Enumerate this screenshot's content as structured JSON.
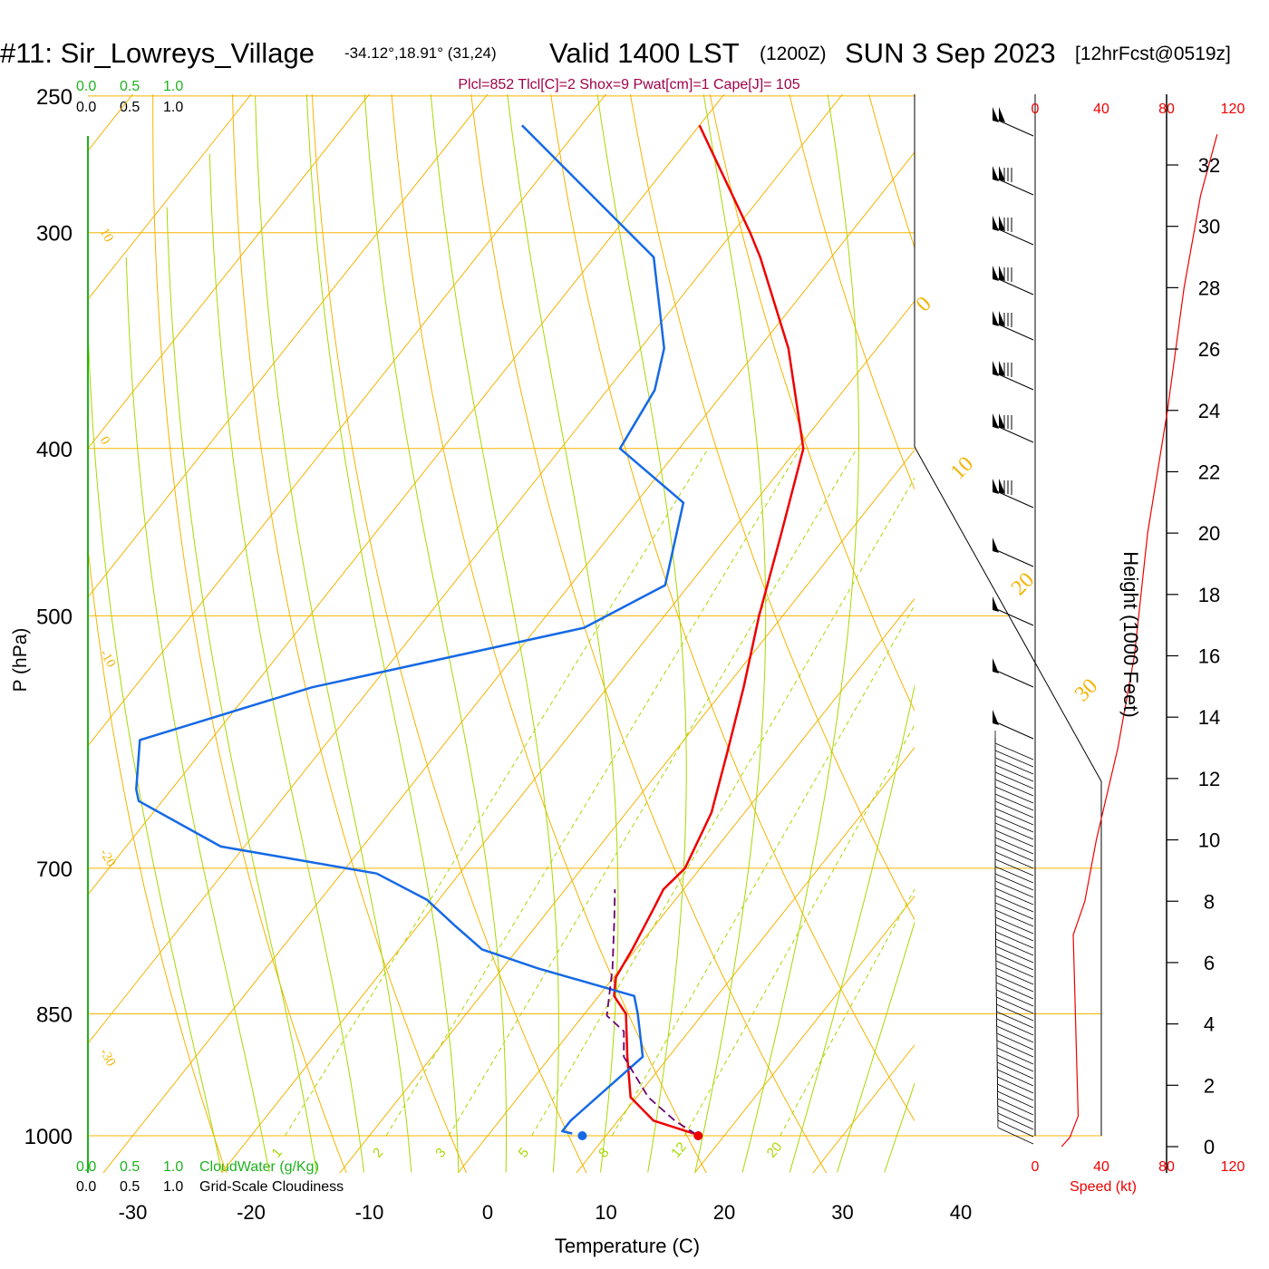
{
  "header": {
    "station": "#11: Sir_Lowreys_Village",
    "coords": "-34.12°,18.91° (31,24)",
    "valid": "Valid 1400 LST",
    "zulu": "(1200Z)",
    "date": "SUN 3 Sep 2023",
    "forecast": "[12hrFcst@0519z]"
  },
  "indices": "Plcl=852 Tlcl[C]=2 Shox=9 Pwat[cm]=1 Cape[J]= 105",
  "scales": {
    "cloudwater_ticks": [
      "0.0",
      "0.5",
      "1.0"
    ],
    "cloudiness_ticks": [
      "0.0",
      "0.5",
      "1.0"
    ],
    "cloudwater_label": "CloudWater (g/Kg)",
    "cloudiness_label": "Grid-Scale Cloudiness"
  },
  "wind_speed_axis": {
    "ticks": [
      "0",
      "40",
      "80",
      "120"
    ],
    "label": "Speed (kt)"
  },
  "colors": {
    "isotherm": "#f5b400",
    "mixing_ratio": "#a8d800",
    "temperature": "#ee0000",
    "dewpoint": "#1569e6",
    "parcel": "#6a0070",
    "indices": "#a0004a",
    "cloud_green": "#1db31d",
    "wind_speed": "#ee0000"
  },
  "chart_data": {
    "type": "line",
    "subtype": "skew-T log-P sounding",
    "xlabel": "Temperature (C)",
    "ylabel": "P (hPa)",
    "y2label": "Height (1000 Feet)",
    "x_ticks": [
      -30,
      -20,
      -10,
      0,
      10,
      20,
      30,
      40
    ],
    "p_ticks": [
      250,
      300,
      400,
      500,
      700,
      850,
      1000
    ],
    "height_ticks": [
      0,
      2,
      4,
      6,
      8,
      10,
      12,
      14,
      16,
      18,
      20,
      22,
      24,
      26,
      28,
      30,
      32
    ],
    "ylim_hpa": [
      1000,
      250
    ],
    "xlim_c": [
      -30,
      40
    ],
    "isotherm_labels": [
      "10",
      "0",
      "-10",
      "-20",
      "-30",
      "0",
      "10",
      "20",
      "30"
    ],
    "mixing_ratio_labels": [
      "1",
      "2",
      "3",
      "5",
      "8",
      "12",
      "20"
    ],
    "series": [
      {
        "name": "Temperature",
        "points": [
          [
            998,
            17.5
          ],
          [
            980,
            13.0
          ],
          [
            950,
            9.5
          ],
          [
            900,
            6.5
          ],
          [
            850,
            3.5
          ],
          [
            830,
            1.3
          ],
          [
            810,
            0.2
          ],
          [
            780,
            -0.3
          ],
          [
            740,
            -1.2
          ],
          [
            720,
            -1.7
          ],
          [
            700,
            -1.3
          ],
          [
            650,
            -2.8
          ],
          [
            600,
            -5.5
          ],
          [
            550,
            -8.5
          ],
          [
            500,
            -12
          ],
          [
            450,
            -15.5
          ],
          [
            400,
            -19.5
          ],
          [
            350,
            -27.5
          ],
          [
            310,
            -36
          ],
          [
            300,
            -38.5
          ],
          [
            260,
            -50
          ]
        ]
      },
      {
        "name": "Dewpoint",
        "points": [
          [
            997,
            7.0
          ],
          [
            994,
            6.0
          ],
          [
            980,
            6.0
          ],
          [
            900,
            7.8
          ],
          [
            850,
            4.5
          ],
          [
            830,
            3.0
          ],
          [
            800,
            -7
          ],
          [
            780,
            -13
          ],
          [
            755,
            -17
          ],
          [
            730,
            -21
          ],
          [
            705,
            -27
          ],
          [
            680,
            -42
          ],
          [
            640,
            -52
          ],
          [
            630,
            -53
          ],
          [
            590,
            -56
          ],
          [
            550,
            -45
          ],
          [
            508,
            -26
          ],
          [
            480,
            -22
          ],
          [
            430,
            -26
          ],
          [
            400,
            -35
          ],
          [
            370,
            -36
          ],
          [
            350,
            -38
          ],
          [
            310,
            -45
          ],
          [
            260,
            -65
          ]
        ]
      },
      {
        "name": "Parcel",
        "points": [
          [
            998,
            17.5
          ],
          [
            980,
            14.8
          ],
          [
            950,
            11.0
          ],
          [
            900,
            6.2
          ],
          [
            870,
            4.5
          ],
          [
            852,
            2.0
          ],
          [
            800,
            -0.7
          ],
          [
            750,
            -3.8
          ],
          [
            720,
            -5.8
          ]
        ]
      }
    ],
    "surface_points": {
      "temperature_c": 17.8,
      "dewpoint_c": 8.0,
      "pressure_hpa": 1000
    },
    "lifted_levels": {
      "lcl_hpa": 852,
      "tlcl_c": 2
    },
    "wind_speed_profile": {
      "height_kft": [
        0,
        0.3,
        1,
        3,
        5,
        6.9,
        8,
        10,
        13,
        16,
        20,
        24,
        28,
        31,
        33
      ],
      "speed_kt": [
        16,
        21,
        26,
        25,
        24,
        23,
        30,
        37,
        50,
        60,
        68,
        80,
        90,
        100,
        110
      ]
    }
  }
}
